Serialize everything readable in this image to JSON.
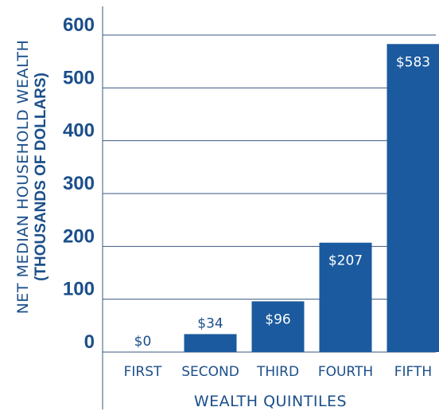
{
  "chart_data": {
    "type": "bar",
    "categories": [
      "FIRST",
      "SECOND",
      "THIRD",
      "FOURTH",
      "FIFTH"
    ],
    "values": [
      0,
      34,
      96,
      207,
      583
    ],
    "data_labels": [
      "$0",
      "$34",
      "$96",
      "$207",
      "$583"
    ],
    "xlabel": "WEALTH QUINTILES",
    "ylabel_line1": "NET MEDIAN HOUSEHOLD WEALTH",
    "ylabel_line2": "(THOUSANDS OF DOLLARS)",
    "yticks": [
      "0",
      "100",
      "200",
      "300",
      "400",
      "500",
      "600"
    ],
    "ylim": [
      0,
      600
    ],
    "grid": true,
    "colors": {
      "bar": "#1b5a9e",
      "text": "#1b4f8a",
      "grid": "#3a5a80"
    }
  }
}
